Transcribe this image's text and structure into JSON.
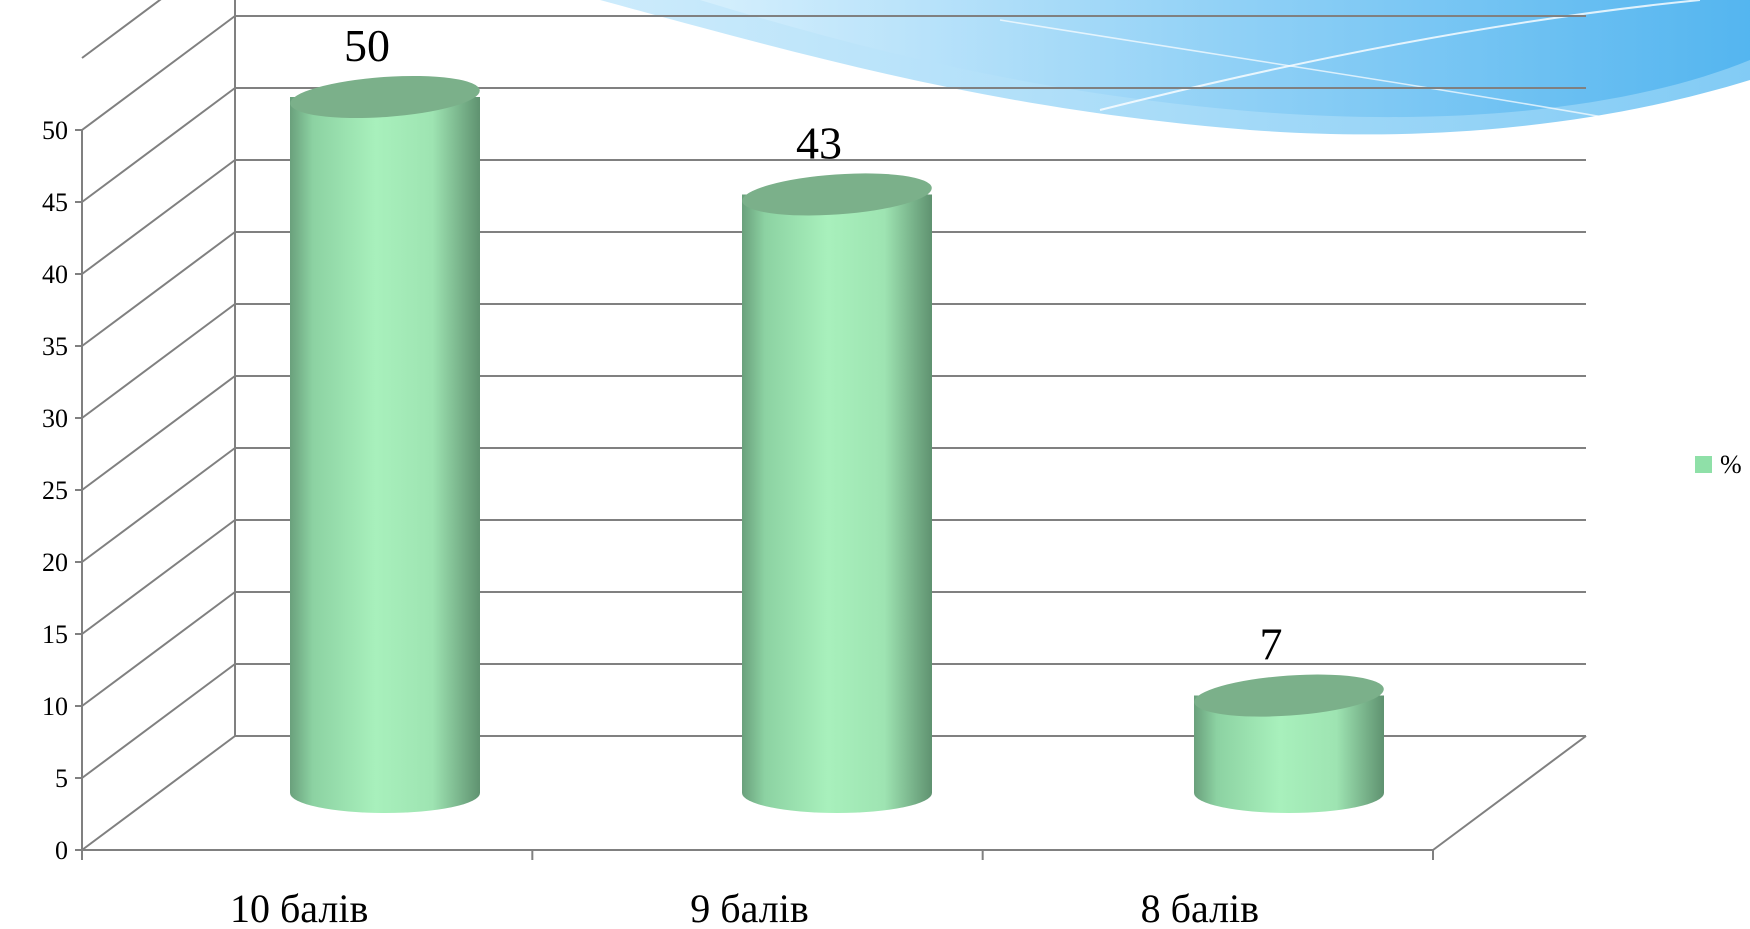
{
  "chart_data": {
    "type": "bar",
    "categories": [
      "10 балів",
      "9 балів",
      "8 балів"
    ],
    "series": [
      {
        "name": "%",
        "values": [
          50,
          43,
          7
        ]
      }
    ],
    "data_labels": [
      "50",
      "43",
      "7"
    ],
    "y_ticks": [
      "0",
      "5",
      "10",
      "15",
      "20",
      "25",
      "30",
      "35",
      "40",
      "45",
      "50"
    ],
    "ylim": [
      0,
      50
    ],
    "grid": true,
    "legend_position": "right",
    "style": "3d-cylinder",
    "colors": {
      "bar_light": "#a8f0bc",
      "bar_dark": "#6aa07c",
      "bar_top": "#7bb08a",
      "legend_swatch": "#8fe0a8",
      "grid": "#808080",
      "wave_light": "#bfe6fb",
      "wave_mid": "#8fd0f6",
      "wave_dark": "#5ab8f0"
    }
  }
}
